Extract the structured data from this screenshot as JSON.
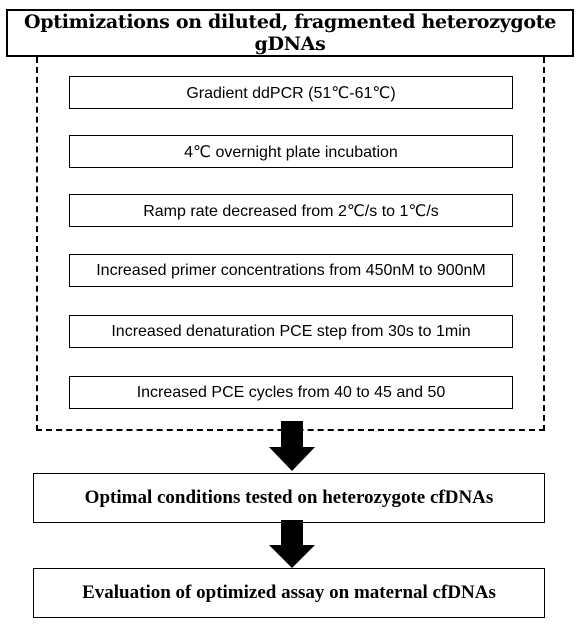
{
  "header": {
    "title": "Optimizations on diluted, fragmented heterozygote gDNAs"
  },
  "steps": [
    "Gradient ddPCR (51℃-61℃)",
    "4℃ overnight plate incubation",
    "Ramp rate decreased from 2℃/s to 1℃/s",
    "Increased primer concentrations from 450nM to 900nM",
    "Increased denaturation PCE step from 30s to 1min",
    "Increased PCE cycles from 40 to 45 and 50"
  ],
  "stage2": {
    "label": "Optimal conditions tested on heterozygote cfDNAs"
  },
  "stage3": {
    "label": "Evaluation of optimized assay on maternal cfDNAs"
  }
}
